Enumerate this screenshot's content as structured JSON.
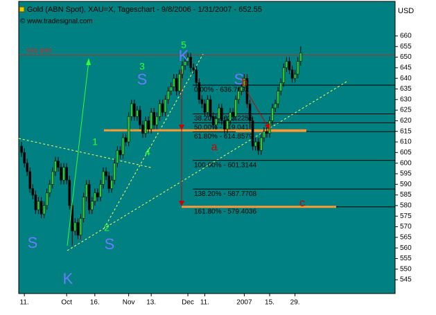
{
  "chart_data": {
    "type": "candlestick",
    "title": "Gold (ABN Spot), XAU=X, Tageschart - 9/8/2006 - 1/31/2007 - 652.55",
    "subtitle": "© www.tradesignal.com",
    "y_axis_label": "USD",
    "up_color": "#33cc33",
    "down_color": "#000000",
    "open": [
      608,
      605,
      600,
      596,
      588,
      585,
      578,
      582,
      576,
      580,
      586,
      590,
      596,
      601,
      598,
      592,
      598,
      592,
      580,
      568,
      572,
      566,
      574,
      584,
      590,
      578,
      582,
      586,
      584,
      590,
      596,
      594,
      588,
      592,
      600,
      606,
      604,
      612,
      610,
      622,
      628,
      622,
      625,
      618,
      614,
      620,
      616,
      624,
      618,
      622,
      628,
      624,
      630,
      634,
      636,
      640,
      634,
      642,
      646,
      648,
      650,
      645,
      644,
      638,
      630,
      628,
      624,
      630,
      622,
      618,
      621,
      626,
      620,
      616,
      620,
      624,
      622,
      630,
      634,
      636,
      640,
      628,
      620,
      608,
      610,
      606,
      612,
      615,
      614,
      620,
      626,
      628,
      634,
      638,
      645,
      648,
      644,
      640,
      642,
      648
    ],
    "high": [
      610,
      607,
      602,
      598,
      590,
      587,
      584,
      584,
      582,
      588,
      592,
      598,
      603,
      603,
      600,
      600,
      600,
      594,
      582,
      574,
      574,
      576,
      586,
      592,
      592,
      584,
      588,
      588,
      592,
      598,
      598,
      596,
      594,
      602,
      608,
      608,
      614,
      614,
      624,
      630,
      630,
      627,
      627,
      620,
      622,
      622,
      626,
      626,
      624,
      630,
      630,
      632,
      636,
      638,
      642,
      642,
      644,
      648,
      650,
      652,
      652,
      647,
      646,
      640,
      632,
      630,
      632,
      632,
      624,
      623,
      628,
      628,
      622,
      622,
      626,
      626,
      632,
      636,
      638,
      642,
      642,
      630,
      622,
      612,
      612,
      614,
      617,
      617,
      622,
      628,
      630,
      636,
      640,
      647,
      650,
      650,
      646,
      644,
      650,
      655
    ],
    "low": [
      603,
      598,
      594,
      586,
      583,
      576,
      576,
      574,
      574,
      578,
      584,
      588,
      594,
      596,
      590,
      590,
      590,
      578,
      561,
      566,
      564,
      564,
      572,
      582,
      576,
      576,
      580,
      582,
      582,
      588,
      592,
      586,
      586,
      590,
      598,
      602,
      602,
      608,
      608,
      620,
      620,
      620,
      616,
      612,
      612,
      614,
      614,
      616,
      616,
      620,
      622,
      622,
      628,
      632,
      634,
      632,
      632,
      640,
      644,
      646,
      643,
      642,
      636,
      628,
      626,
      622,
      622,
      620,
      616,
      616,
      619,
      618,
      614,
      614,
      618,
      620,
      620,
      628,
      632,
      634,
      626,
      618,
      606,
      606,
      604,
      604,
      610,
      612,
      612,
      618,
      624,
      626,
      632,
      636,
      643,
      642,
      638,
      638,
      640,
      646
    ],
    "close": [
      605,
      600,
      596,
      588,
      585,
      578,
      582,
      576,
      580,
      586,
      590,
      596,
      601,
      598,
      592,
      598,
      592,
      580,
      568,
      572,
      566,
      574,
      584,
      590,
      578,
      582,
      586,
      584,
      590,
      596,
      594,
      588,
      592,
      600,
      606,
      604,
      612,
      610,
      622,
      628,
      622,
      625,
      618,
      614,
      620,
      616,
      624,
      618,
      622,
      628,
      624,
      630,
      634,
      636,
      640,
      634,
      642,
      646,
      648,
      650,
      645,
      644,
      638,
      630,
      628,
      624,
      630,
      622,
      618,
      621,
      626,
      620,
      616,
      620,
      624,
      622,
      630,
      634,
      636,
      640,
      628,
      620,
      608,
      610,
      606,
      612,
      615,
      614,
      620,
      626,
      628,
      634,
      638,
      645,
      648,
      644,
      640,
      642,
      648,
      652
    ],
    "xlim": [
      -1,
      132.5
    ],
    "xticks": [
      {
        "value": 1,
        "label": "11."
      },
      {
        "value": 16,
        "label": "Oct"
      },
      {
        "value": 26,
        "label": "16."
      },
      {
        "value": 38,
        "label": "Nov"
      },
      {
        "value": 46,
        "label": "13."
      },
      {
        "value": 59,
        "label": "Dec"
      },
      {
        "value": 65,
        "label": "11."
      },
      {
        "value": 79,
        "label": "2007"
      },
      {
        "value": 88,
        "label": "15."
      },
      {
        "value": 97,
        "label": "29."
      }
    ],
    "ylim": [
      538.5,
      676.3
    ],
    "yticks": [
      545,
      550,
      555,
      560,
      565,
      570,
      575,
      580,
      585,
      590,
      595,
      600,
      605,
      610,
      615,
      620,
      625,
      630,
      635,
      640,
      645,
      650,
      655,
      660
    ],
    "resistance": 650.899,
    "fib_levels": [
      {
        "value": 636.7692,
        "label": "0.00% - 636.7692"
      },
      {
        "value": 623.2255,
        "label": "38.20% - 623.2255"
      },
      {
        "value": 619.0418,
        "label": "50.00% - 619.0418"
      },
      {
        "value": 614.8579,
        "label": "61.80% - 614.8579"
      },
      {
        "value": 601.3144,
        "label": "100.00% - 601.3144"
      },
      {
        "value": 587.7708,
        "label": "138.20% - 587.7708"
      },
      {
        "value": 579.4036,
        "label": "161.80% - 579.4036"
      }
    ],
    "support_lines": [
      615.5,
      615.2,
      579.4
    ],
    "wave_labels": [
      "S",
      "K",
      "S",
      "S",
      "K",
      "S",
      "1",
      "2",
      "3",
      "4",
      "5",
      "a",
      "b",
      "c"
    ]
  }
}
